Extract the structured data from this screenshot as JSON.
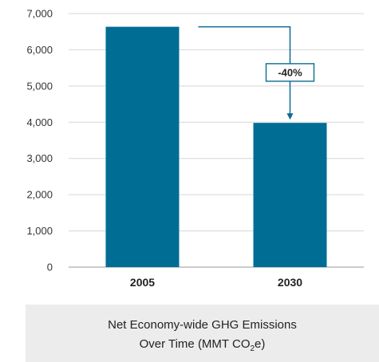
{
  "chart_data": {
    "type": "bar",
    "categories": [
      "2005",
      "2030"
    ],
    "values": [
      6635,
      3981
    ],
    "ylim": [
      0,
      7000
    ],
    "yticks": [
      0,
      1000,
      2000,
      3000,
      4000,
      5000,
      6000,
      7000
    ],
    "ytick_labels": [
      "0",
      "1,000",
      "2,000",
      "3,000",
      "4,000",
      "5,000",
      "6,000",
      "7,000"
    ],
    "bar_color": "#006d95",
    "grid": true,
    "annotation": {
      "label": "-40%",
      "from": "2005",
      "to": "2030"
    },
    "caption": {
      "line1": "Net Economy-wide GHG Emissions",
      "line2_prefix": "Over Time (MMT CO",
      "line2_sub": "2",
      "line2_suffix": "e)"
    }
  }
}
